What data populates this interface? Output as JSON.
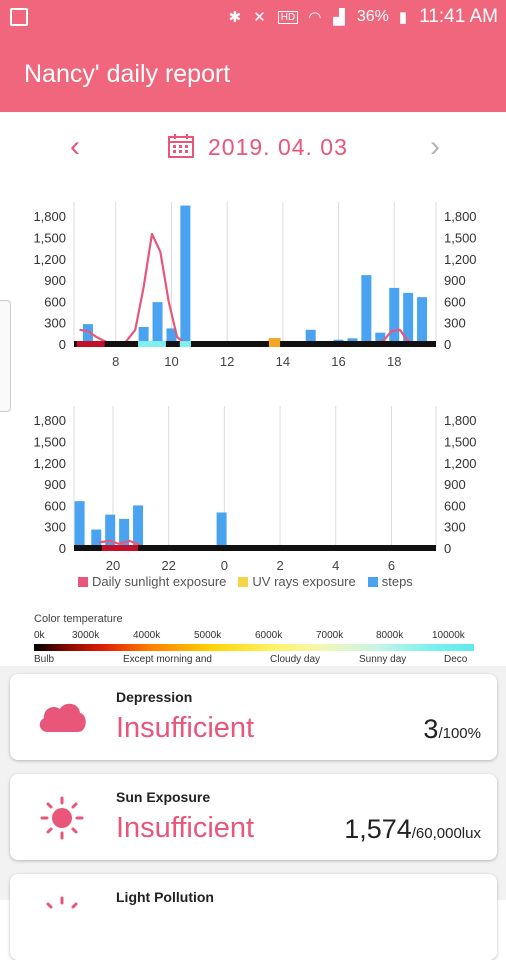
{
  "status_bar": {
    "battery": "36%",
    "time": "11:41 AM",
    "hd_label": "HD",
    "voice_label": "Voice",
    "icons": [
      "gallery-icon",
      "bluetooth-icon",
      "mute-icon",
      "wifi-icon",
      "signal-icon",
      "battery-icon"
    ]
  },
  "app_bar": {
    "title": "Nancy' daily report"
  },
  "date_nav": {
    "date": "2019. 04. 03"
  },
  "colors": {
    "primary": "#f0677d",
    "accent": "#e8567a",
    "steps": "#4aa3f0",
    "sunlight": "#e8567a",
    "uv": "#f5d547"
  },
  "chart_data": [
    {
      "type": "bar",
      "x_ticks": [
        "8",
        "10",
        "12",
        "14",
        "16",
        "18"
      ],
      "y_ticks_left": [
        "0",
        "300",
        "600",
        "900",
        "1,200",
        "1,500",
        "1,800"
      ],
      "y_ticks_right": [
        "0",
        "300",
        "600",
        "900",
        "1,200",
        "1,500",
        "1,800"
      ],
      "ylim": [
        0,
        2000
      ],
      "xlim": [
        6.5,
        19.5
      ],
      "series": [
        {
          "name": "steps",
          "type": "bar",
          "x": [
            7.0,
            8.0,
            8.5,
            9.0,
            9.5,
            10.0,
            10.5,
            11.0,
            12.0,
            13.0,
            14.0,
            15.0,
            16.0,
            16.5,
            17.0,
            17.5,
            18.0,
            18.5,
            19.0
          ],
          "y": [
            280,
            40,
            20,
            240,
            590,
            220,
            1950,
            40,
            20,
            30,
            10,
            200,
            60,
            80,
            970,
            160,
            790,
            720,
            660
          ]
        },
        {
          "name": "Daily sunlight exposure",
          "type": "line",
          "x": [
            6.7,
            7.0,
            7.3,
            7.8,
            8.3,
            8.7,
            9.0,
            9.3,
            9.6,
            9.9,
            10.2,
            10.5,
            11.0,
            12.0,
            13.0,
            14.0,
            15.0,
            16.0,
            17.0,
            17.6,
            17.9,
            18.2,
            18.5,
            19.0
          ],
          "y": [
            200,
            180,
            100,
            0,
            0,
            200,
            800,
            1550,
            1300,
            600,
            100,
            0,
            0,
            0,
            0,
            0,
            0,
            0,
            0,
            40,
            180,
            200,
            40,
            0
          ]
        },
        {
          "name": "UV rays exposure",
          "type": "bar",
          "x": [
            13.7
          ],
          "y": [
            90
          ]
        }
      ]
    },
    {
      "type": "bar",
      "x_ticks": [
        "20",
        "22",
        "0",
        "2",
        "4",
        "6"
      ],
      "y_ticks_left": [
        "0",
        "300",
        "600",
        "900",
        "1,200",
        "1,500",
        "1,800"
      ],
      "y_ticks_right": [
        "0",
        "300",
        "600",
        "900",
        "1,200",
        "1,500",
        "1,800"
      ],
      "ylim": [
        0,
        2000
      ],
      "xlim": [
        18.6,
        31.6
      ],
      "series": [
        {
          "name": "steps",
          "type": "bar",
          "x": [
            18.8,
            19.4,
            19.9,
            20.4,
            20.9,
            23.9
          ],
          "y": [
            660,
            260,
            470,
            410,
            600,
            500
          ]
        },
        {
          "name": "Daily sunlight exposure",
          "type": "line",
          "x": [
            19.5,
            19.9,
            20.2,
            20.6,
            20.9,
            21.2
          ],
          "y": [
            80,
            100,
            60,
            100,
            50,
            0
          ]
        }
      ]
    }
  ],
  "legend": [
    {
      "label": "Daily sunlight exposure",
      "color": "#e8567a"
    },
    {
      "label": "UV rays exposure",
      "color": "#f5d547"
    },
    {
      "label": "steps",
      "color": "#4aa3f0"
    }
  ],
  "color_temperature": {
    "title": "Color temperature",
    "ticks": [
      "0k",
      "3000k",
      "4000k",
      "5000k",
      "6000k",
      "7000k",
      "8000k",
      "10000k"
    ],
    "labels": [
      "Bulb",
      "Except morning and",
      "Cloudy day",
      "Sunny day",
      "Deco"
    ]
  },
  "cards": [
    {
      "title": "Depression",
      "status": "Insufficient",
      "value": "3",
      "unit": "/100%",
      "icon": "cloud-icon"
    },
    {
      "title": "Sun Exposure",
      "status": "Insufficient",
      "value": "1,574",
      "unit": "/60,000lux",
      "icon": "sun-icon"
    },
    {
      "title": "Light Pollution",
      "status": "",
      "value": "",
      "unit": "",
      "icon": "sun-icon"
    }
  ]
}
